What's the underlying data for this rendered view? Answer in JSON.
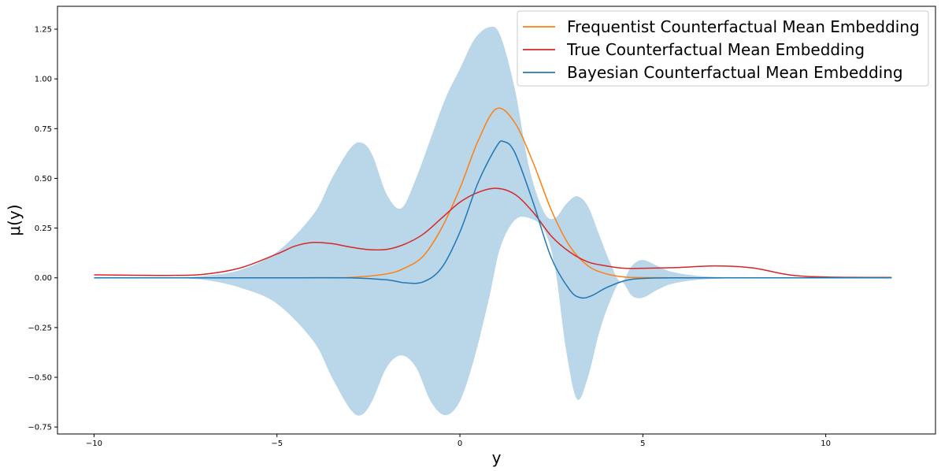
{
  "chart_data": {
    "type": "line",
    "xlabel": "y",
    "ylabel": "μ(y)",
    "xlim": [
      -11,
      13
    ],
    "ylim": [
      -0.785,
      1.365
    ],
    "xticks": [
      -10,
      -5,
      0,
      5,
      10
    ],
    "xtick_labels": [
      "−10",
      "−5",
      "0",
      "5",
      "10"
    ],
    "yticks": [
      -0.75,
      -0.5,
      -0.25,
      0.0,
      0.25,
      0.5,
      0.75,
      1.0,
      1.25
    ],
    "ytick_labels": [
      "−0.75",
      "−0.50",
      "−0.25",
      "0.00",
      "0.25",
      "0.50",
      "0.75",
      "1.00",
      "1.25"
    ],
    "grid": false,
    "legend_position": "top-right",
    "band": {
      "color": "#bad6e9",
      "x": [
        -10,
        -8,
        -7,
        -6,
        -5,
        -4,
        -3.5,
        -3,
        -2.7,
        -2.4,
        -2,
        -1.6,
        -1.2,
        -0.8,
        -0.4,
        0,
        0.4,
        0.8,
        1.1,
        1.5,
        1.9,
        2.3,
        2.6,
        2.9,
        3.2,
        3.5,
        3.8,
        4.1,
        4.4,
        4.7,
        5.0,
        5.4,
        5.8,
        6.5,
        7.5,
        9,
        11.8
      ],
      "upper": [
        0,
        0.002,
        0.01,
        0.04,
        0.13,
        0.32,
        0.5,
        0.65,
        0.68,
        0.62,
        0.42,
        0.35,
        0.5,
        0.7,
        0.9,
        1.05,
        1.2,
        1.26,
        1.22,
        0.95,
        0.55,
        0.33,
        0.3,
        0.37,
        0.41,
        0.36,
        0.22,
        0.08,
        -0.02,
        0.06,
        0.09,
        0.06,
        0.03,
        0.01,
        0.002,
        0,
        0
      ],
      "lower": [
        0,
        -0.002,
        -0.01,
        -0.05,
        -0.13,
        -0.32,
        -0.5,
        -0.66,
        -0.69,
        -0.62,
        -0.45,
        -0.39,
        -0.45,
        -0.62,
        -0.69,
        -0.62,
        -0.4,
        -0.1,
        0.15,
        0.29,
        0.3,
        0.24,
        0.05,
        -0.36,
        -0.61,
        -0.5,
        -0.28,
        -0.12,
        -0.02,
        -0.09,
        -0.1,
        -0.06,
        -0.03,
        -0.01,
        -0.002,
        0,
        0
      ]
    },
    "series": [
      {
        "name": "Frequentist Counterfactual Mean Embedding",
        "color": "#ff7f0e",
        "x": [
          -10,
          -6,
          -4,
          -3,
          -2,
          -1.5,
          -1,
          -0.5,
          0,
          0.5,
          1,
          1.5,
          2,
          2.5,
          3,
          3.5,
          4,
          4.5,
          5,
          6,
          8,
          11.8
        ],
        "y": [
          0,
          0,
          0,
          0.002,
          0.02,
          0.05,
          0.11,
          0.25,
          0.45,
          0.69,
          0.85,
          0.78,
          0.58,
          0.34,
          0.16,
          0.06,
          0.02,
          0.004,
          0.001,
          0,
          0,
          0
        ]
      },
      {
        "name": "True Counterfactual Mean Embedding",
        "color": "#d62728",
        "x": [
          -10,
          -8,
          -7,
          -6,
          -5,
          -4.5,
          -4,
          -3.5,
          -3,
          -2.5,
          -2,
          -1.5,
          -1,
          -0.5,
          0,
          0.5,
          1,
          1.5,
          2,
          2.5,
          3,
          3.5,
          4,
          4.5,
          5,
          6,
          7,
          8,
          9,
          10,
          11.8
        ],
        "y": [
          0.015,
          0.012,
          0.018,
          0.05,
          0.12,
          0.16,
          0.178,
          0.172,
          0.155,
          0.142,
          0.143,
          0.17,
          0.22,
          0.3,
          0.38,
          0.43,
          0.45,
          0.42,
          0.33,
          0.21,
          0.13,
          0.08,
          0.06,
          0.048,
          0.048,
          0.052,
          0.06,
          0.05,
          0.015,
          0.004,
          0.002
        ]
      },
      {
        "name": "Bayesian Counterfactual Mean Embedding",
        "color": "#1f77b4",
        "x": [
          -10,
          -5,
          -3,
          -2,
          -1.5,
          -1,
          -0.5,
          0,
          0.5,
          1,
          1.2,
          1.5,
          2,
          2.5,
          3,
          3.3,
          3.6,
          4,
          4.5,
          5,
          6,
          8,
          11.8
        ],
        "y": [
          0,
          0,
          0,
          -0.01,
          -0.025,
          -0.02,
          0.05,
          0.23,
          0.48,
          0.66,
          0.685,
          0.63,
          0.38,
          0.1,
          -0.06,
          -0.1,
          -0.09,
          -0.05,
          -0.015,
          -0.003,
          0,
          0,
          0
        ]
      }
    ]
  }
}
